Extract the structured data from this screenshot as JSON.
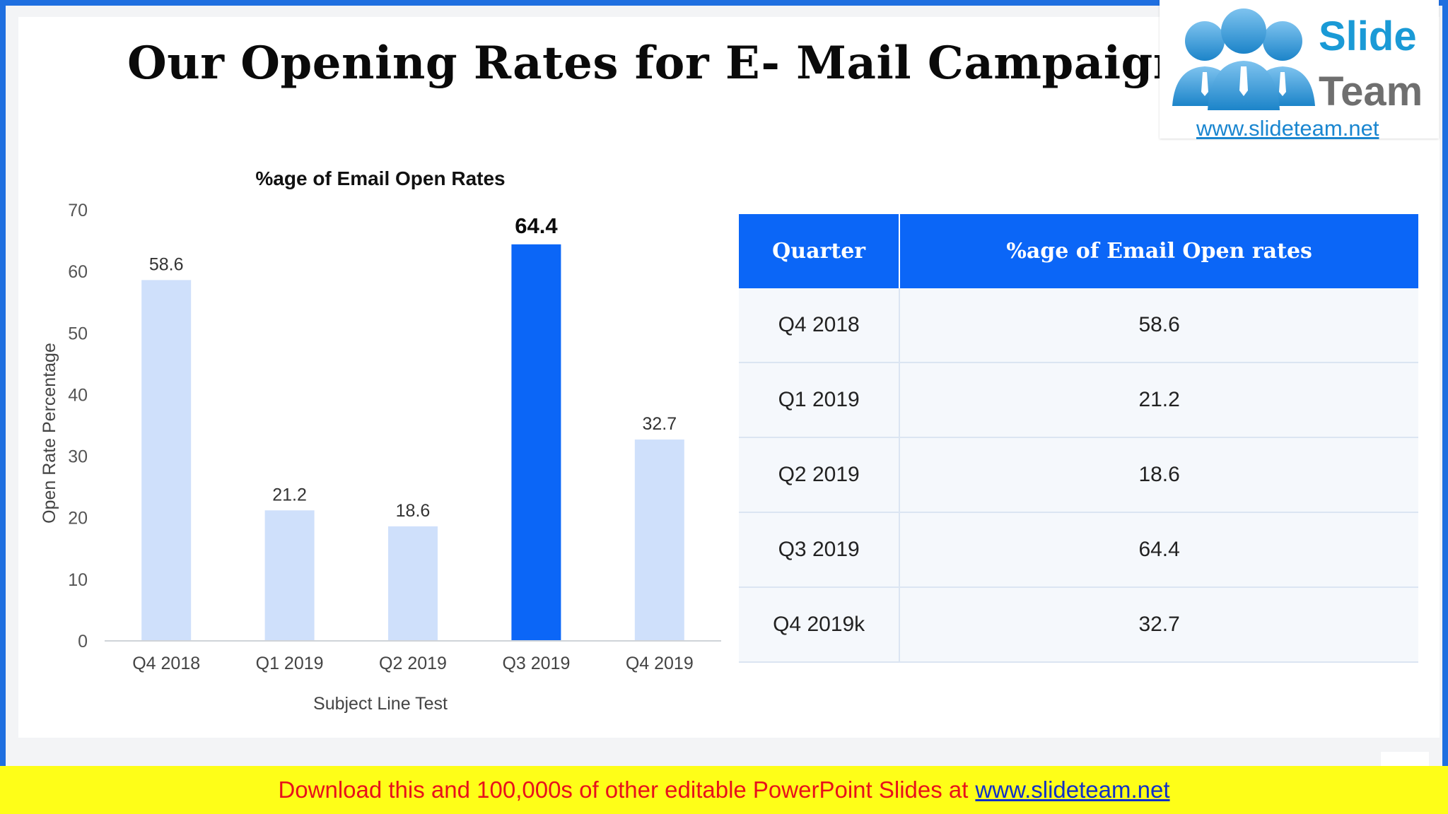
{
  "slide": {
    "title": "Our Opening Rates for E- Mail Campaign Proposal"
  },
  "logo": {
    "word1": "Slide",
    "word2": "Team",
    "url": "www.slideteam.net"
  },
  "colors": {
    "accent": "#0b66f7",
    "bar_light": "#cfe0fb",
    "banner_bg": "#fefe18",
    "banner_text": "#e8111b",
    "frame": "#1f6fe0"
  },
  "chart_data": {
    "type": "bar",
    "title": "%age of Email Open Rates",
    "xlabel": "Subject Line Test",
    "ylabel": "Open Rate Percentage",
    "categories": [
      "Q4 2018",
      "Q1 2019",
      "Q2 2019",
      "Q3 2019",
      "Q4 2019"
    ],
    "values": [
      58.6,
      21.2,
      18.6,
      64.4,
      32.7
    ],
    "highlight_index": 3,
    "ylim": [
      0,
      70
    ],
    "yticks": [
      0,
      10,
      20,
      30,
      40,
      50,
      60,
      70
    ],
    "grid": false,
    "legend": "none"
  },
  "table": {
    "headers": [
      "Quarter",
      "%age of Email Open rates"
    ],
    "rows": [
      [
        "Q4 2018",
        "58.6"
      ],
      [
        "Q1 2019",
        "21.2"
      ],
      [
        "Q2 2019",
        "18.6"
      ],
      [
        "Q3 2019",
        "64.4"
      ],
      [
        "Q4 2019k",
        "32.7"
      ]
    ]
  },
  "banner": {
    "text": "Download this and 100,000s of other editable PowerPoint Slides at",
    "link": "www.slideteam.net"
  }
}
